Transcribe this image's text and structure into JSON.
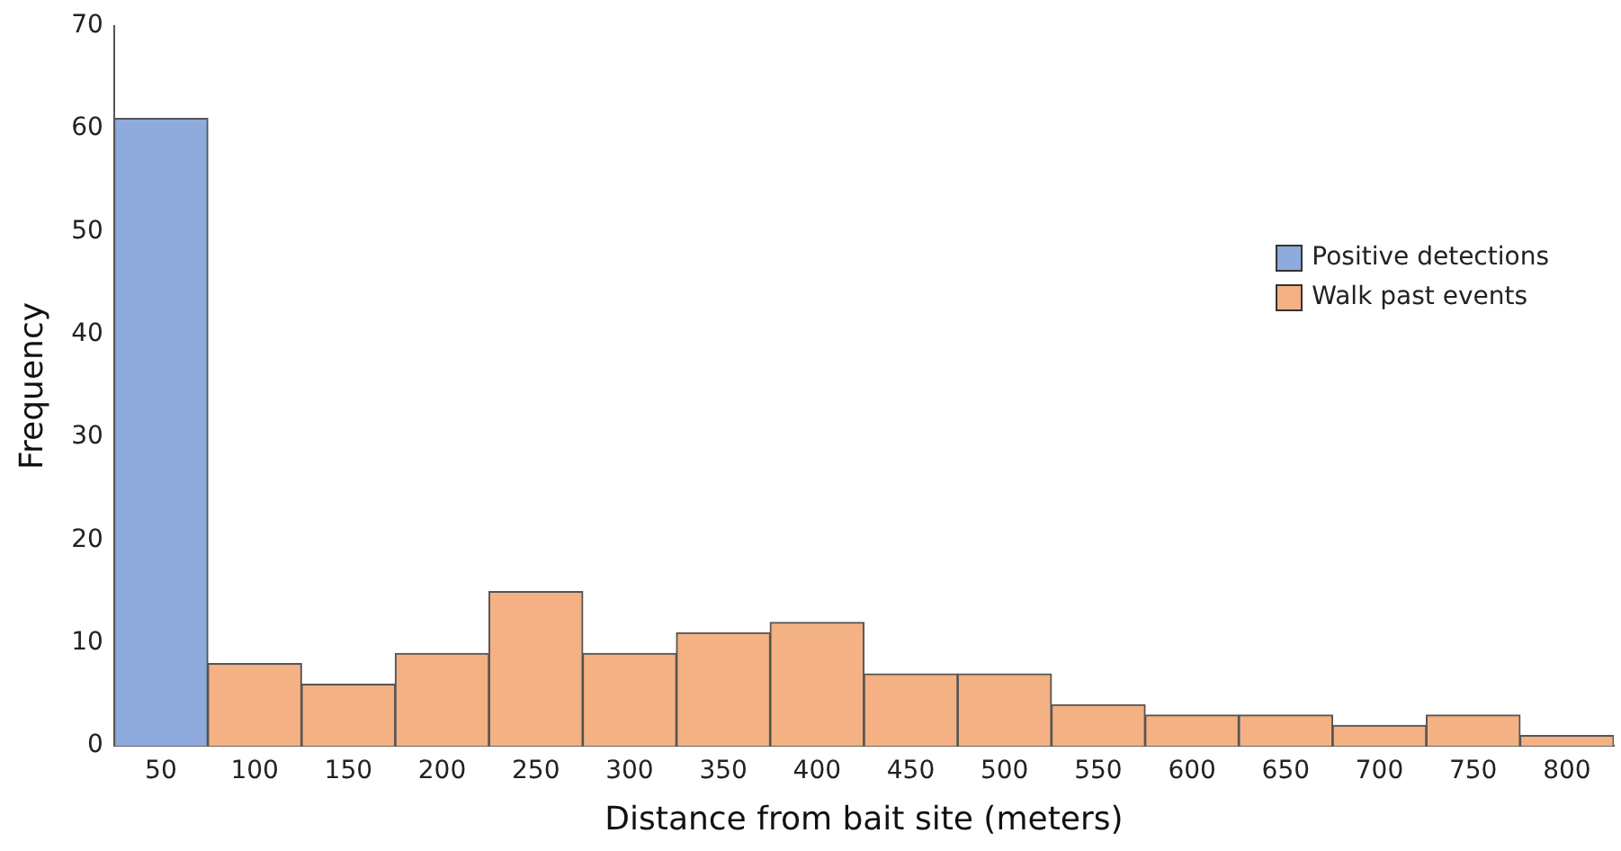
{
  "chart_data": {
    "type": "bar",
    "xlabel": "Distance from bait site (meters)",
    "ylabel": "Frequency",
    "categories": [
      "50",
      "100",
      "150",
      "200",
      "250",
      "300",
      "350",
      "400",
      "450",
      "500",
      "550",
      "600",
      "650",
      "700",
      "750",
      "800"
    ],
    "series": [
      {
        "name": "Positive detections",
        "color": "#8faadc",
        "values": [
          61,
          null,
          null,
          null,
          null,
          null,
          null,
          null,
          null,
          null,
          null,
          null,
          null,
          null,
          null,
          null
        ]
      },
      {
        "name": "Walk past events",
        "color": "#f4b183",
        "values": [
          null,
          8,
          6,
          9,
          15,
          9,
          11,
          12,
          7,
          7,
          4,
          3,
          3,
          2,
          3,
          1
        ]
      }
    ],
    "stacked": true,
    "ylim": [
      0,
      70
    ],
    "yticks": [
      0,
      10,
      20,
      30,
      40,
      50,
      60,
      70
    ],
    "grid": false,
    "legend": "top right"
  }
}
